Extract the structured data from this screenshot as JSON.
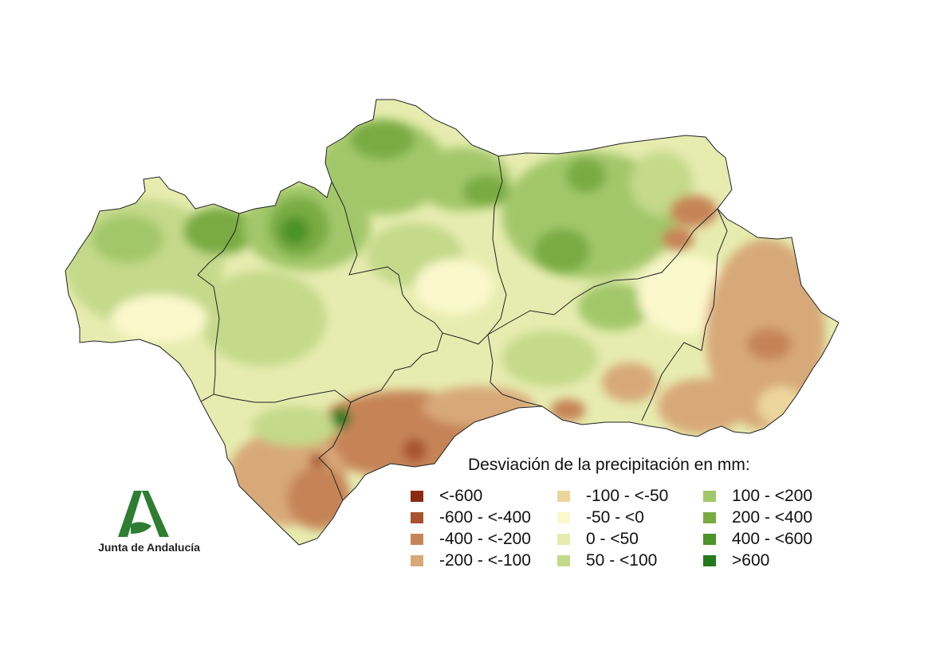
{
  "legend": {
    "title": "Desviación de la precipitación en mm:",
    "items": [
      {
        "label": "<-600",
        "color": "#8b2a12"
      },
      {
        "label": "-600 - <-400",
        "color": "#a8522f"
      },
      {
        "label": "-400 - <-200",
        "color": "#c68457"
      },
      {
        "label": "-200 - <-100",
        "color": "#d8a978"
      },
      {
        "label": "-100 - <-50",
        "color": "#ecd69c"
      },
      {
        "label": "-50 - <0",
        "color": "#fbf8cc"
      },
      {
        "label": "0 - <50",
        "color": "#e6ecaf"
      },
      {
        "label": "50 - <100",
        "color": "#c4d98a"
      },
      {
        "label": "100 - <200",
        "color": "#a2c76a"
      },
      {
        "label": "200 - <400",
        "color": "#79ab43"
      },
      {
        "label": "400 - <600",
        "color": "#4c9328"
      },
      {
        "label": ">600",
        "color": "#257a1a"
      }
    ]
  },
  "logo": {
    "text": "Junta de Andalucía",
    "color": "#2e7d32"
  },
  "map": {
    "region": "Andalucía",
    "border_color": "#222222"
  }
}
